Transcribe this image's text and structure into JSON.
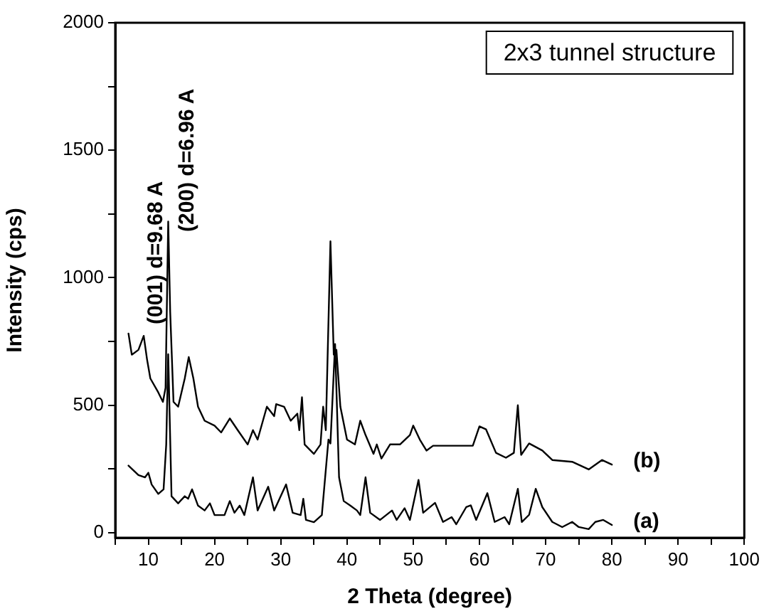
{
  "chart_data": {
    "type": "line",
    "xlabel": "2 Theta (degree)",
    "ylabel": "Intensity (cps)",
    "annotations": [
      "(001) d=9.68 A",
      "(200) d=6.96 A",
      "2x3 tunnel structure"
    ],
    "xlim": [
      5,
      100
    ],
    "ylim": [
      -20,
      2000
    ],
    "xticks": [
      {
        "value": 5,
        "label": null
      },
      10,
      {
        "value": 15,
        "label": null
      },
      20,
      {
        "value": 25,
        "label": null
      },
      30,
      {
        "value": 35,
        "label": null
      },
      40,
      {
        "value": 45,
        "label": null
      },
      50,
      {
        "value": 55,
        "label": null
      },
      60,
      {
        "value": 65,
        "label": null
      },
      70,
      {
        "value": 75,
        "label": null
      },
      80,
      {
        "value": 85,
        "label": null
      },
      90,
      {
        "value": 95,
        "label": null
      },
      100
    ],
    "yticks": [
      0,
      {
        "value": 250,
        "label": null
      },
      500,
      {
        "value": 750,
        "label": null
      },
      1000,
      {
        "value": 1250,
        "label": null
      },
      1500,
      {
        "value": 1750,
        "label": null
      },
      2000
    ],
    "grid": false,
    "legend": false,
    "marker": "none",
    "line_style": "solid",
    "series": [
      {
        "name": "(b)",
        "color": "#000000",
        "x": [
          7,
          7.5,
          8.5,
          9.3,
          9.8,
          10.3,
          11.5,
          12.2,
          12.6,
          13,
          13.3,
          13.8,
          14.5,
          15.5,
          16.1,
          16.8,
          17.5,
          18.5,
          20,
          21,
          22.3,
          23.5,
          25,
          25.8,
          26.5,
          27.9,
          29,
          29.3,
          30.5,
          31.5,
          32.5,
          32.8,
          33.2,
          33.6,
          35,
          36,
          36.4,
          36.8,
          37.5,
          38,
          38.4,
          39,
          40,
          41.2,
          42,
          42.8,
          44,
          44.5,
          45.2,
          46.5,
          48,
          49.5,
          50,
          51,
          52,
          53,
          55,
          58,
          59,
          60,
          61,
          62.5,
          64,
          65.2,
          65.8,
          66.3,
          67.5,
          69.5,
          71,
          74,
          76.5,
          78.5,
          80
        ],
        "values": [
          781,
          698,
          717,
          772,
          680,
          605,
          550,
          513,
          568,
          1220,
          865,
          513,
          494,
          605,
          689,
          605,
          494,
          439,
          420,
          393,
          448,
          402,
          346,
          402,
          365,
          494,
          457,
          504,
          494,
          439,
          467,
          402,
          531,
          346,
          309,
          346,
          494,
          402,
          1143,
          698,
          717,
          494,
          365,
          346,
          439,
          383,
          309,
          346,
          291,
          346,
          346,
          383,
          420,
          365,
          322,
          341,
          341,
          341,
          341,
          417,
          405,
          313,
          294,
          313,
          500,
          305,
          350,
          322,
          285,
          278,
          248,
          285,
          267
        ]
      },
      {
        "name": "(a)",
        "color": "#000000",
        "x": [
          7,
          8.5,
          9.5,
          10,
          10.5,
          11.5,
          12.3,
          12.7,
          13,
          13.5,
          14.5,
          15.5,
          16,
          16.6,
          17.5,
          18.5,
          19.3,
          20,
          21.5,
          22.3,
          23,
          23.8,
          24.5,
          25.8,
          26.5,
          28.1,
          29,
          30.8,
          31.8,
          33,
          33.4,
          33.8,
          35,
          36.2,
          37.2,
          37.5,
          38.2,
          38.8,
          39.5,
          40.5,
          41.5,
          42,
          42.8,
          43.5,
          45,
          46.8,
          47.5,
          48.7,
          49.5,
          50.8,
          51.5,
          53.3,
          54.5,
          55.8,
          56.5,
          58,
          58.7,
          59.5,
          61.2,
          62.3,
          63.8,
          64.5,
          65.8,
          66.4,
          67.5,
          68.5,
          69.5,
          71,
          72.5,
          74,
          75,
          76.5,
          77.5,
          78.7,
          80
        ],
        "values": [
          263,
          226,
          217,
          235,
          189,
          152,
          170,
          346,
          700,
          143,
          115,
          143,
          133,
          170,
          106,
          87,
          115,
          69,
          69,
          124,
          78,
          106,
          69,
          217,
          87,
          180,
          87,
          189,
          78,
          69,
          133,
          50,
          41,
          69,
          365,
          350,
          740,
          217,
          124,
          106,
          87,
          69,
          217,
          78,
          50,
          87,
          50,
          96,
          50,
          207,
          78,
          117,
          42,
          61,
          33,
          100,
          107,
          50,
          155,
          42,
          61,
          33,
          172,
          42,
          70,
          172,
          100,
          42,
          22,
          42,
          22,
          14,
          42,
          50,
          30
        ]
      }
    ]
  }
}
